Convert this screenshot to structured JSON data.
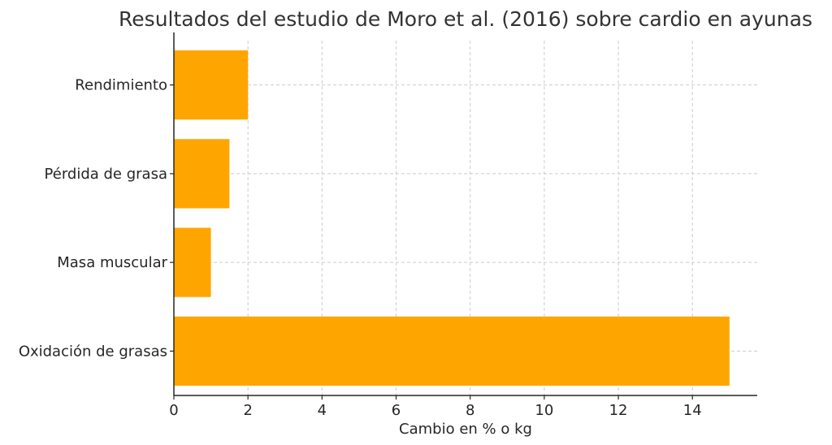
{
  "chart_data": {
    "type": "bar",
    "orientation": "horizontal",
    "title": "Resultados del estudio de Moro et al. (2016) sobre cardio en ayunas",
    "xlabel": "Cambio en % o kg",
    "ylabel": "",
    "categories": [
      "Oxidación de grasas",
      "Masa muscular",
      "Pérdida de grasa",
      "Rendimiento"
    ],
    "values": [
      15,
      1,
      1.5,
      2
    ],
    "xlim": [
      0,
      15.75
    ],
    "xticks": [
      0,
      2,
      4,
      6,
      8,
      10,
      12,
      14
    ],
    "grid": true,
    "bar_color": "#FFA500",
    "legend": "none"
  }
}
